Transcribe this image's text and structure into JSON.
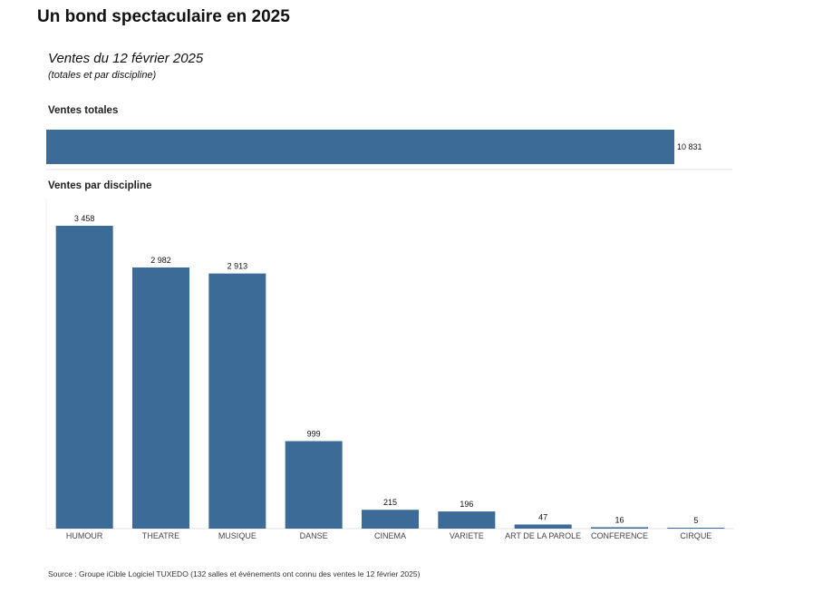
{
  "title": "Un bond spectaculaire en 2025",
  "subtitle": "Ventes du 12 février 2025",
  "subtitle_note": "(totales et par discipline)",
  "section_total": "Ventes totales",
  "section_discipline": "Ventes par discipline",
  "source": "Source : Groupe iCible Logiciel TUXEDO (132 salles et événements ont connu des ventes le 12 février 2025)",
  "colors": {
    "bar": "#3d6b98",
    "axis": "#e0e0e0",
    "label": "#111111",
    "category": "#444444"
  },
  "chart_data": [
    {
      "type": "bar",
      "orientation": "horizontal",
      "title": "Ventes totales",
      "categories": [
        ""
      ],
      "values": [
        10831
      ],
      "value_labels": [
        "10 831"
      ]
    },
    {
      "type": "bar",
      "orientation": "vertical",
      "title": "Ventes par discipline",
      "categories": [
        "HUMOUR",
        "THEATRE",
        "MUSIQUE",
        "DANSE",
        "CINEMA",
        "VARIETE",
        "ART DE LA PAROLE",
        "CONFERENCE",
        "CIRQUE"
      ],
      "values": [
        3458,
        2982,
        2913,
        999,
        215,
        196,
        47,
        16,
        5
      ],
      "value_labels": [
        "3 458",
        "2 982",
        "2 913",
        "999",
        "215",
        "196",
        "47",
        "16",
        "5"
      ]
    }
  ]
}
